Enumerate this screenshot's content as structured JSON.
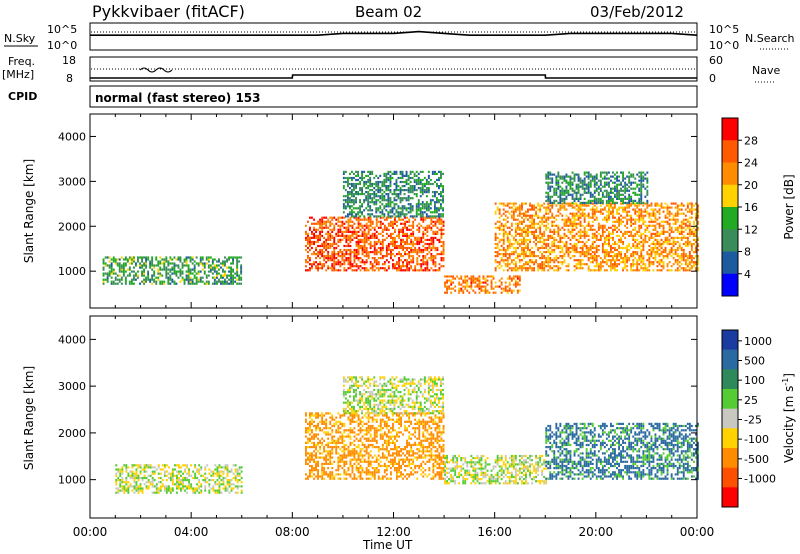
{
  "header": {
    "station": "Pykkvibaer (fitACF)",
    "beam": "Beam 02",
    "date": "03/Feb/2012"
  },
  "top_panels": {
    "nsky_label": "N.Sky",
    "nsky_ticks": [
      "10^5",
      "10^0"
    ],
    "nsearch_label": "N.Search",
    "nsearch_ticks": [
      "10^5",
      "10^0"
    ],
    "freq_label": "Freq.",
    "freq_unit": "[MHz]",
    "freq_ticks": [
      "18",
      "8"
    ],
    "nave_label": "Nave",
    "nave_ticks": [
      "60",
      "0"
    ],
    "cpid_label": "CPID",
    "cpid_value": "normal (fast stereo) 153"
  },
  "axes": {
    "ylabel": "Slant Range [km]",
    "yticks": [
      "4000",
      "3000",
      "2000",
      "1000"
    ],
    "xticks": [
      "00:00",
      "04:00",
      "08:00",
      "12:00",
      "16:00",
      "20:00",
      "00:00"
    ],
    "xlabel": "Time UT"
  },
  "power_scale": {
    "label": "Power [dB]",
    "ticks": [
      "28",
      "24",
      "20",
      "16",
      "12",
      "8",
      "4"
    ],
    "colors": [
      "#ff0000",
      "#ff5a00",
      "#ff8c00",
      "#ffd200",
      "#22aa22",
      "#3a8c5a",
      "#1e5aa0",
      "#0000ff"
    ]
  },
  "velocity_scale": {
    "label": "Velocity [m s",
    "label_sup": "-1",
    "label_end": "]",
    "ticks": [
      "1000",
      "500",
      "100",
      "25",
      "-25",
      "-100",
      "-500",
      "-1000"
    ],
    "colors": [
      "#1a3ca0",
      "#2a6aa0",
      "#2e8a5a",
      "#55cc33",
      "#c8c8c0",
      "#ffd200",
      "#ff8c00",
      "#ff5000",
      "#ff0000"
    ]
  },
  "chart_data": [
    {
      "type": "line",
      "title": "Pykkvibaer (fitACF)",
      "series": [
        {
          "name": "N.Sky",
          "x": [
            0,
            1,
            2,
            3,
            4,
            5,
            6,
            7,
            8,
            9,
            10,
            11,
            12,
            13,
            14,
            15,
            16,
            17,
            18,
            19,
            20,
            21,
            22,
            23,
            24
          ],
          "values": [
            3,
            3,
            3,
            3,
            3,
            3,
            3,
            3,
            3,
            3,
            3.5,
            3.5,
            3.5,
            4,
            3.5,
            3,
            3,
            3,
            3,
            3.5,
            3.5,
            3.5,
            3.5,
            3.5,
            3
          ]
        },
        {
          "name": "Freq.",
          "x": [
            0,
            8,
            8.01,
            18,
            18.01,
            24
          ],
          "values": [
            8.5,
            8.5,
            10,
            10,
            8.5,
            8.5
          ]
        }
      ]
    },
    {
      "type": "heatmap",
      "title": "Power [dB]",
      "xlabel": "Time UT",
      "ylabel": "Slant Range [km]",
      "xlim": [
        0,
        24
      ],
      "ylim": [
        180,
        4500
      ],
      "zlim": [
        0,
        30
      ],
      "regions": [
        {
          "t0": 0.5,
          "t1": 6,
          "r0": 700,
          "r1": 1300,
          "level": 10
        },
        {
          "t0": 8.5,
          "t1": 14,
          "r0": 1000,
          "r1": 2200,
          "level": 24
        },
        {
          "t0": 10,
          "t1": 14,
          "r0": 2200,
          "r1": 3200,
          "level": 8
        },
        {
          "t0": 14,
          "t1": 17,
          "r0": 500,
          "r1": 900,
          "level": 22
        },
        {
          "t0": 16,
          "t1": 24,
          "r0": 1000,
          "r1": 2500,
          "level": 20
        },
        {
          "t0": 18,
          "t1": 22,
          "r0": 2500,
          "r1": 3200,
          "level": 8
        }
      ]
    },
    {
      "type": "heatmap",
      "title": "Velocity [m s-1]",
      "xlabel": "Time UT",
      "ylabel": "Slant Range [km]",
      "xlim": [
        0,
        24
      ],
      "ylim": [
        180,
        4500
      ],
      "regions": [
        {
          "t0": 1,
          "t1": 6,
          "r0": 700,
          "r1": 1300,
          "level": 0
        },
        {
          "t0": 8.5,
          "t1": 14,
          "r0": 1000,
          "r1": 2400,
          "level": -150
        },
        {
          "t0": 10,
          "t1": 14,
          "r0": 2400,
          "r1": 3200,
          "level": 0
        },
        {
          "t0": 14,
          "t1": 18,
          "r0": 900,
          "r1": 1500,
          "level": 0
        },
        {
          "t0": 18,
          "t1": 24,
          "r0": 1000,
          "r1": 2200,
          "level": 150
        }
      ]
    }
  ]
}
